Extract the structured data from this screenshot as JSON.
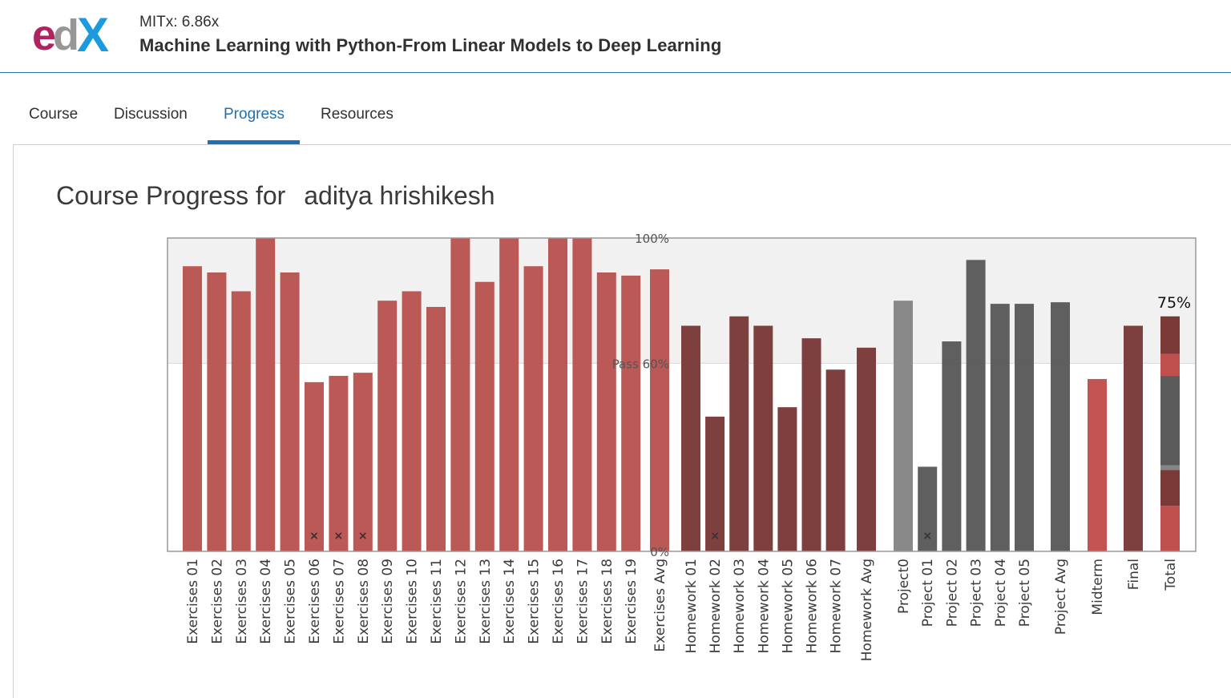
{
  "header": {
    "course_code": "MITx: 6.86x",
    "course_title": "Machine Learning with Python-From Linear Models to Deep Learning"
  },
  "tabs": [
    {
      "label": "Course",
      "active": false
    },
    {
      "label": "Discussion",
      "active": false
    },
    {
      "label": "Progress",
      "active": true
    },
    {
      "label": "Resources",
      "active": false
    }
  ],
  "page": {
    "heading_prefix": "Course Progress for",
    "student_name": "aditya hrishikesh"
  },
  "colors": {
    "exercises": "#b85450",
    "homework": "#7a3a38",
    "project": "#5a5a5a",
    "project0": "#858585",
    "midterm": "#c0504d",
    "final": "#7a3a38",
    "pass_band": "#f1f1f1",
    "accent": "#1f6fb3"
  },
  "chart_data": {
    "type": "bar",
    "ylim": [
      0,
      100
    ],
    "yticks": [
      {
        "value": 100,
        "label": "100%"
      },
      {
        "value": 60,
        "label": "Pass 60%"
      },
      {
        "value": 0,
        "label": "0%"
      }
    ],
    "categories": [
      "Exercises 01",
      "Exercises 02",
      "Exercises 03",
      "Exercises 04",
      "Exercises 05",
      "Exercises 06",
      "Exercises 07",
      "Exercises 08",
      "Exercises 09",
      "Exercises 10",
      "Exercises 11",
      "Exercises 12",
      "Exercises 13",
      "Exercises 14",
      "Exercises 15",
      "Exercises 16",
      "Exercises 17",
      "Exercises 18",
      "Exercises 19",
      "Exercises Avg",
      "Homework 01",
      "Homework 02",
      "Homework 03",
      "Homework 04",
      "Homework 05",
      "Homework 06",
      "Homework 07",
      "Homework Avg",
      "Project0",
      "Project 01",
      "Project 02",
      "Project 03",
      "Project 04",
      "Project 05",
      "Project Avg",
      "Midterm",
      "Final",
      "Total"
    ],
    "values": [
      91,
      89,
      83,
      100,
      89,
      54,
      56,
      57,
      80,
      83,
      78,
      100,
      86,
      100,
      91,
      100,
      100,
      89,
      88,
      90,
      72,
      43,
      75,
      72,
      46,
      68,
      58,
      65,
      80,
      27,
      67,
      93,
      79,
      79,
      79.5,
      55,
      72,
      75
    ],
    "groups": [
      "exercises",
      "exercises",
      "exercises",
      "exercises",
      "exercises",
      "exercises",
      "exercises",
      "exercises",
      "exercises",
      "exercises",
      "exercises",
      "exercises",
      "exercises",
      "exercises",
      "exercises",
      "exercises",
      "exercises",
      "exercises",
      "exercises",
      "exercises",
      "homework",
      "homework",
      "homework",
      "homework",
      "homework",
      "homework",
      "homework",
      "homework",
      "project0",
      "project",
      "project",
      "project",
      "project",
      "project",
      "project",
      "midterm",
      "final",
      "total"
    ],
    "dropped": [
      "Exercises 06",
      "Exercises 07",
      "Exercises 08",
      "Homework 02",
      "Project 01"
    ],
    "total_segments": [
      {
        "color": "#c0504d",
        "value": 14.5
      },
      {
        "color": "#7a3a38",
        "value": 11.5
      },
      {
        "color": "#858585",
        "value": 1.5
      },
      {
        "color": "#5a5a5a",
        "value": 28.5
      },
      {
        "color": "#c0504d",
        "value": 7
      },
      {
        "color": "#7a3a38",
        "value": 12
      }
    ],
    "total_label": "75%"
  }
}
